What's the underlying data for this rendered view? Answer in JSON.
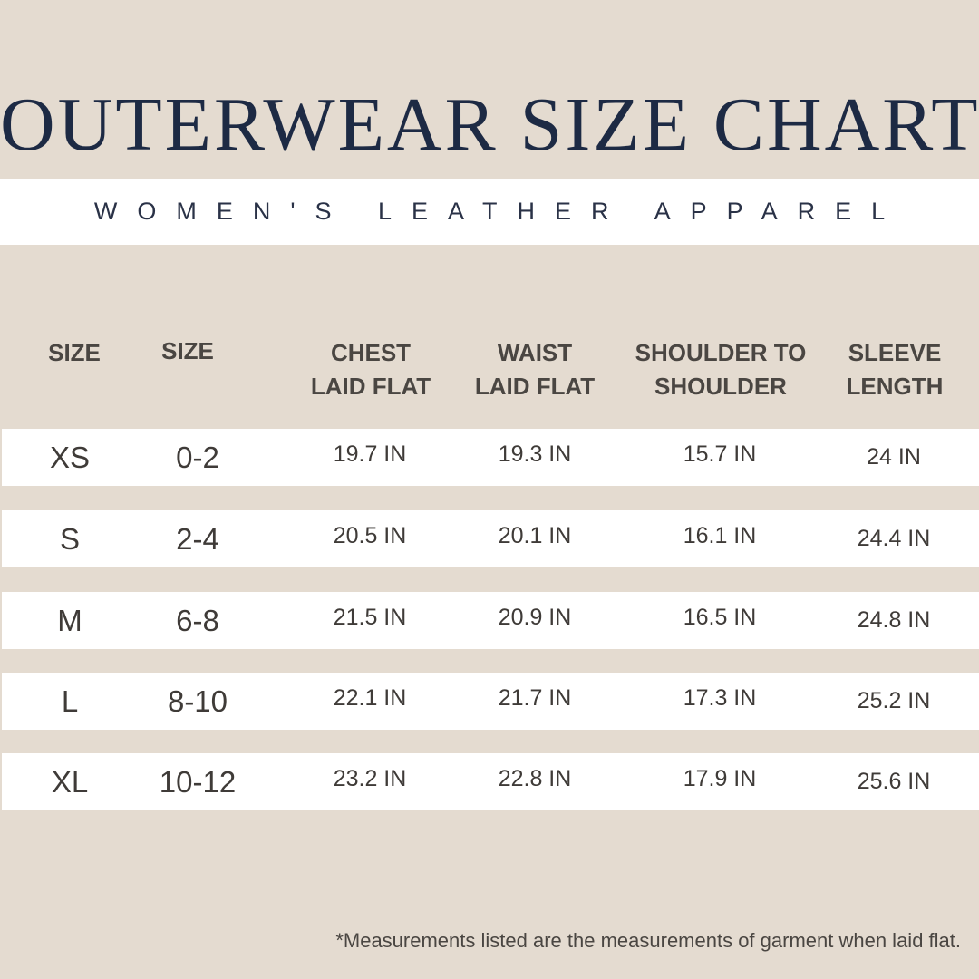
{
  "title": "OUTERWEAR SIZE CHART",
  "subtitle": "WOMEN'S LEATHER APPAREL",
  "headers": [
    {
      "line1": "SIZE",
      "line2": ""
    },
    {
      "line1": "SIZE",
      "line2": ""
    },
    {
      "line1": "CHEST",
      "line2": "LAID FLAT"
    },
    {
      "line1": "WAIST",
      "line2": "LAID FLAT"
    },
    {
      "line1": "SHOULDER TO",
      "line2": "SHOULDER"
    },
    {
      "line1": "SLEEVE",
      "line2": "LENGTH"
    }
  ],
  "rows": [
    {
      "size": "XS",
      "num": "0-2",
      "chest": "19.7 IN",
      "waist": "19.3 IN",
      "shoulder": "15.7 IN",
      "sleeve": "24 IN"
    },
    {
      "size": "S",
      "num": "2-4",
      "chest": "20.5 IN",
      "waist": "20.1 IN",
      "shoulder": "16.1 IN",
      "sleeve": "24.4 IN"
    },
    {
      "size": "M",
      "num": "6-8",
      "chest": "21.5 IN",
      "waist": "20.9 IN",
      "shoulder": "16.5 IN",
      "sleeve": "24.8 IN"
    },
    {
      "size": "L",
      "num": "8-10",
      "chest": "22.1 IN",
      "waist": "21.7 IN",
      "shoulder": "17.3 IN",
      "sleeve": "25.2 IN"
    },
    {
      "size": "XL",
      "num": "10-12",
      "chest": "23.2 IN",
      "waist": "22.8 IN",
      "shoulder": "17.9 IN",
      "sleeve": "25.6 IN"
    }
  ],
  "footnote": "*Measurements listed are the measurements  of garment when laid flat.",
  "colors": {
    "background": "#e4dbd0",
    "band": "#ffffff",
    "title": "#1d2a44",
    "text": "#4a4642"
  }
}
